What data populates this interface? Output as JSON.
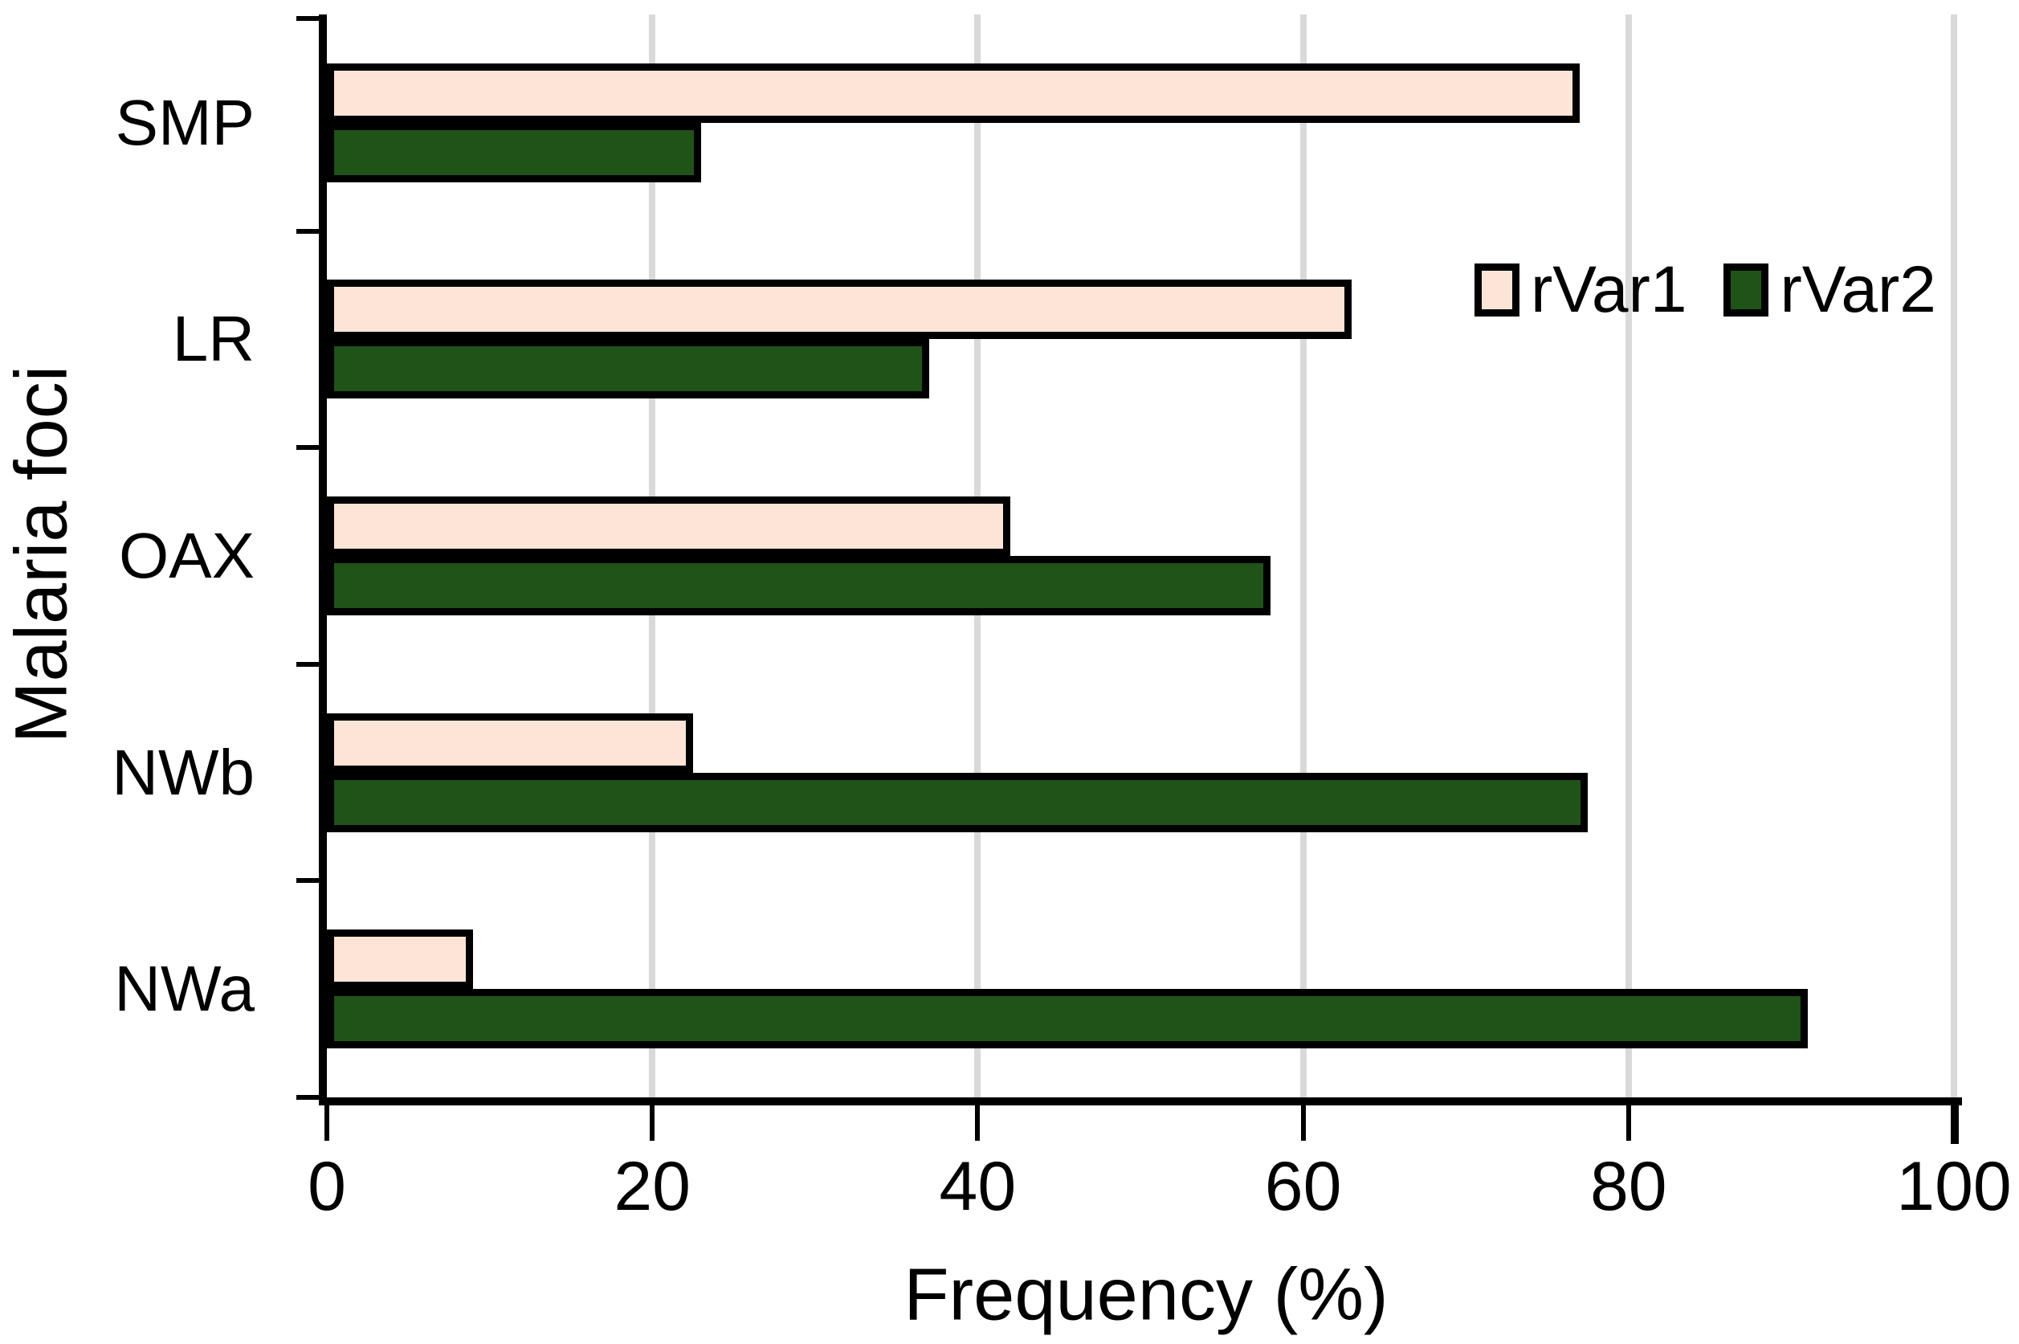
{
  "chart_data": {
    "type": "bar",
    "orientation": "horizontal",
    "title": "",
    "xlabel": "Frequency (%)",
    "ylabel": "Malaria foci",
    "categories": [
      "SMP",
      "LR",
      "OAX",
      "NWb",
      "NWa"
    ],
    "series": [
      {
        "name": "rVar1",
        "color": "#FCE4D6",
        "values": [
          77,
          63,
          42,
          22.5,
          9
        ]
      },
      {
        "name": "rVar2",
        "color": "#1F5318",
        "values": [
          23,
          37,
          58,
          77.5,
          91
        ]
      }
    ],
    "xlim": [
      0,
      100
    ],
    "xticks": [
      0,
      20,
      40,
      60,
      80,
      100
    ],
    "grid": "vertical-gridlines",
    "gridline_color": "#D9D9D9",
    "bar_border_color": "#000000",
    "axis_color": "#000000",
    "legend_position": "inside-upper-right"
  }
}
